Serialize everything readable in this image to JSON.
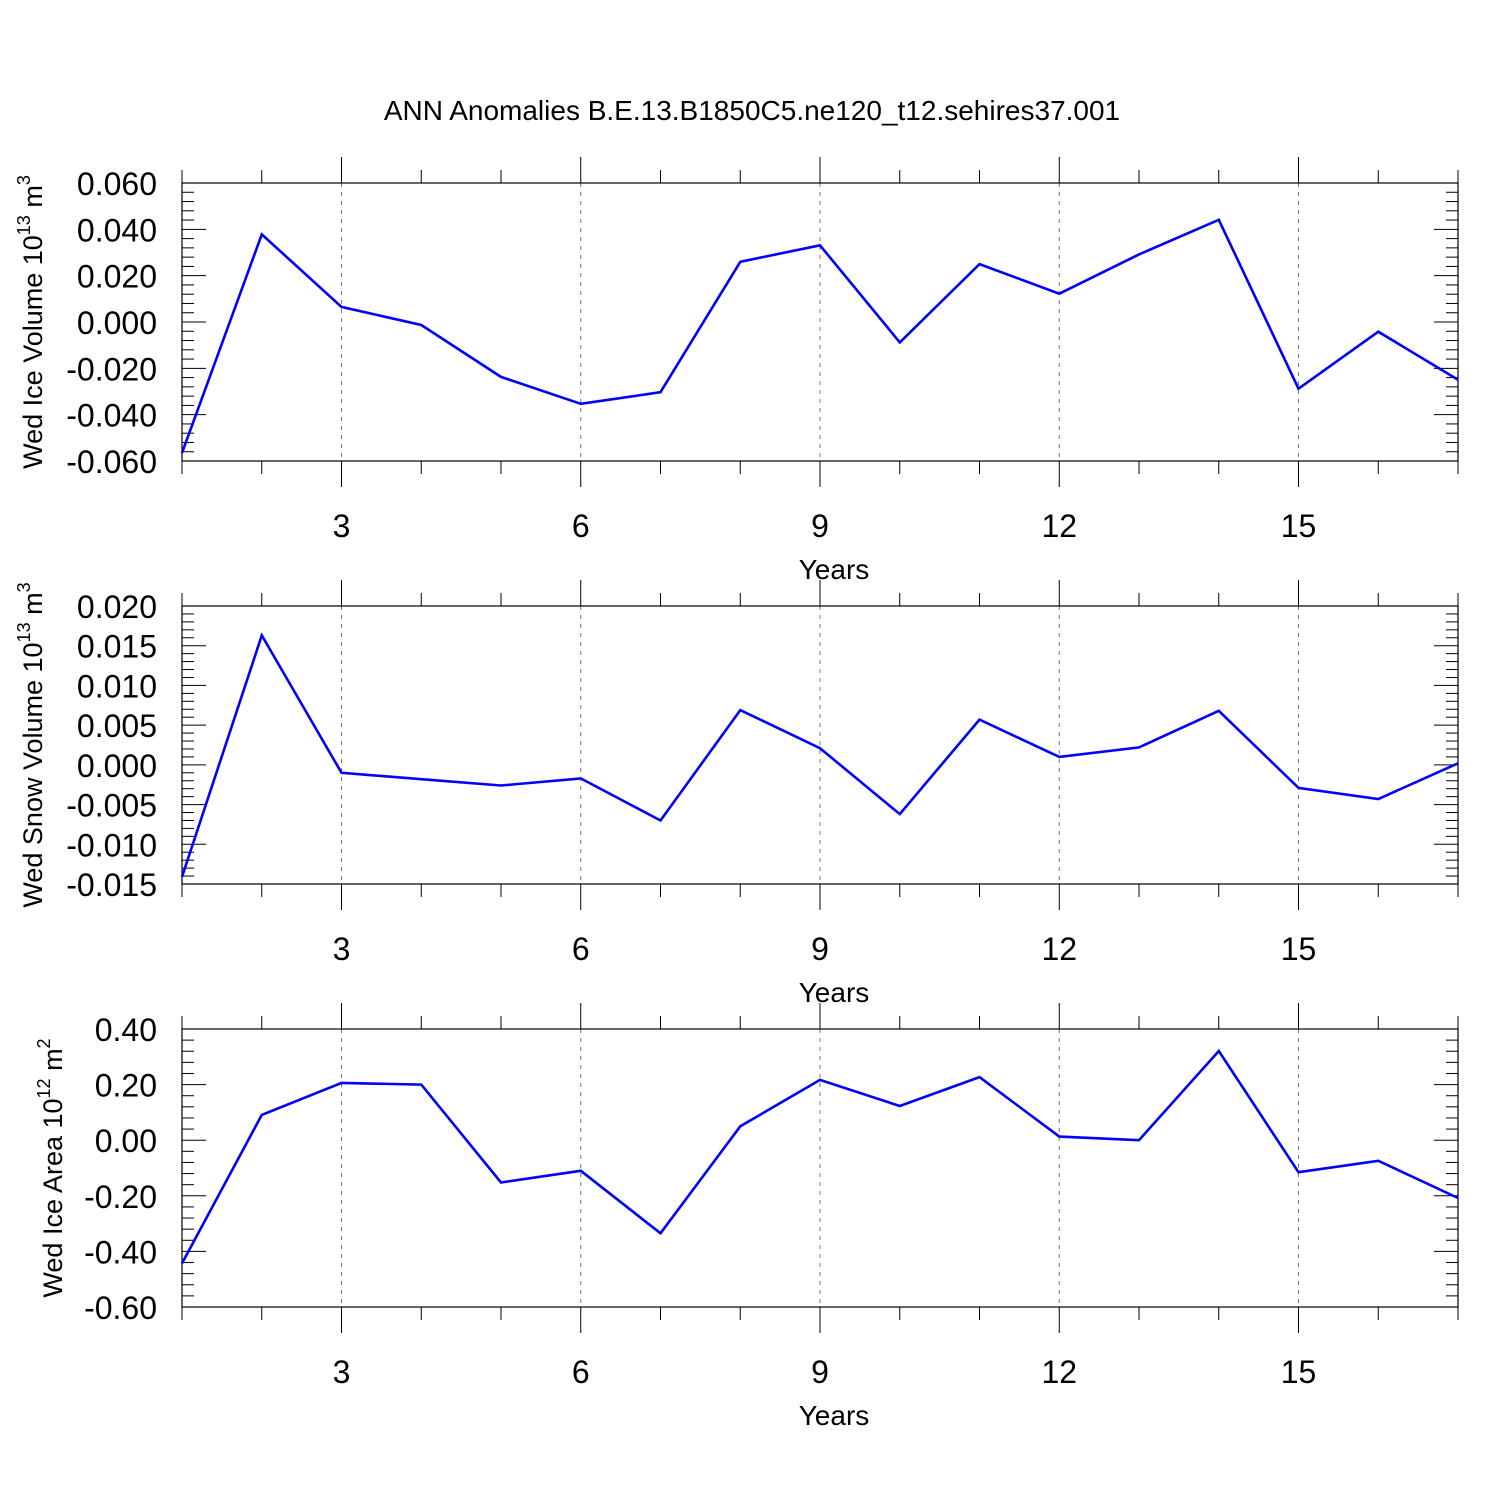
{
  "title": "ANN Anomalies B.E.13.B1850C5.ne120_t12.sehires37.001",
  "colors": {
    "series": "#0000ff",
    "axis": "#000000",
    "grid": "#777777"
  },
  "chart_data": [
    {
      "type": "line",
      "ylabel": {
        "prefix": "Wed Ice Volume 10",
        "exponent": "13",
        "suffix": " m",
        "unit_exponent": "3"
      },
      "xlabel": "Years",
      "xlim": [
        1,
        17
      ],
      "ylim": [
        -0.06,
        0.06
      ],
      "xticks": [
        3,
        6,
        9,
        12,
        15
      ],
      "xtick_labels": [
        "3",
        "6",
        "9",
        "12",
        "15"
      ],
      "yticks": [
        -0.06,
        -0.04,
        -0.02,
        0.0,
        0.02,
        0.04,
        0.06
      ],
      "ytick_labels": [
        "-0.060",
        "-0.040",
        "-0.020",
        "0.000",
        "0.020",
        "0.040",
        "0.060"
      ],
      "grid": "vertical dashed at major x ticks",
      "series": [
        {
          "x": [
            1,
            2,
            3,
            4,
            5,
            6,
            7,
            8,
            9,
            10,
            11,
            12,
            13,
            14,
            15,
            16,
            17
          ],
          "values": [
            -0.0565,
            0.0378,
            0.0065,
            -0.0013,
            -0.0237,
            -0.0353,
            -0.0303,
            0.026,
            0.0331,
            -0.0088,
            0.025,
            0.0122,
            0.0292,
            0.0441,
            -0.0288,
            -0.0042,
            -0.0249
          ]
        }
      ]
    },
    {
      "type": "line",
      "ylabel": {
        "prefix": "Wed Snow Volume 10",
        "exponent": "13",
        "suffix": " m",
        "unit_exponent": "3"
      },
      "xlabel": "Years",
      "xlim": [
        1,
        17
      ],
      "ylim": [
        -0.015,
        0.02
      ],
      "xticks": [
        3,
        6,
        9,
        12,
        15
      ],
      "xtick_labels": [
        "3",
        "6",
        "9",
        "12",
        "15"
      ],
      "yticks": [
        -0.015,
        -0.01,
        -0.005,
        0.0,
        0.005,
        0.01,
        0.015,
        0.02
      ],
      "ytick_labels": [
        "-0.015",
        "-0.010",
        "-0.005",
        "0.000",
        "0.005",
        "0.010",
        "0.015",
        "0.020"
      ],
      "grid": "vertical dashed at major x ticks",
      "series": [
        {
          "x": [
            1,
            2,
            3,
            4,
            5,
            6,
            7,
            8,
            9,
            10,
            11,
            12,
            13,
            14,
            15,
            16,
            17
          ],
          "values": [
            -0.0141,
            0.0163,
            -0.001,
            -0.0018,
            -0.0026,
            -0.0017,
            -0.007,
            0.0069,
            0.0021,
            -0.0062,
            0.0057,
            0.001,
            0.0022,
            0.0068,
            -0.0029,
            -0.0043,
            0.0002
          ]
        }
      ]
    },
    {
      "type": "line",
      "ylabel": {
        "prefix": "Wed Ice Area 10",
        "exponent": "12",
        "suffix": " m",
        "unit_exponent": "2"
      },
      "xlabel": "Years",
      "xlim": [
        1,
        17
      ],
      "ylim": [
        -0.6,
        0.4
      ],
      "xticks": [
        3,
        6,
        9,
        12,
        15
      ],
      "xtick_labels": [
        "3",
        "6",
        "9",
        "12",
        "15"
      ],
      "yticks": [
        -0.6,
        -0.4,
        -0.2,
        0.0,
        0.2,
        0.4
      ],
      "ytick_labels": [
        "-0.60",
        "-0.40",
        "-0.20",
        "0.00",
        "0.20",
        "0.40"
      ],
      "grid": "vertical dashed at major x ticks",
      "series": [
        {
          "x": [
            1,
            2,
            3,
            4,
            5,
            6,
            7,
            8,
            9,
            10,
            11,
            12,
            13,
            14,
            15,
            16,
            17
          ],
          "values": [
            -0.443,
            0.091,
            0.206,
            0.2,
            -0.152,
            -0.11,
            -0.335,
            0.05,
            0.217,
            0.123,
            0.227,
            0.013,
            0.0,
            0.321,
            -0.115,
            -0.074,
            -0.208
          ]
        }
      ]
    }
  ]
}
